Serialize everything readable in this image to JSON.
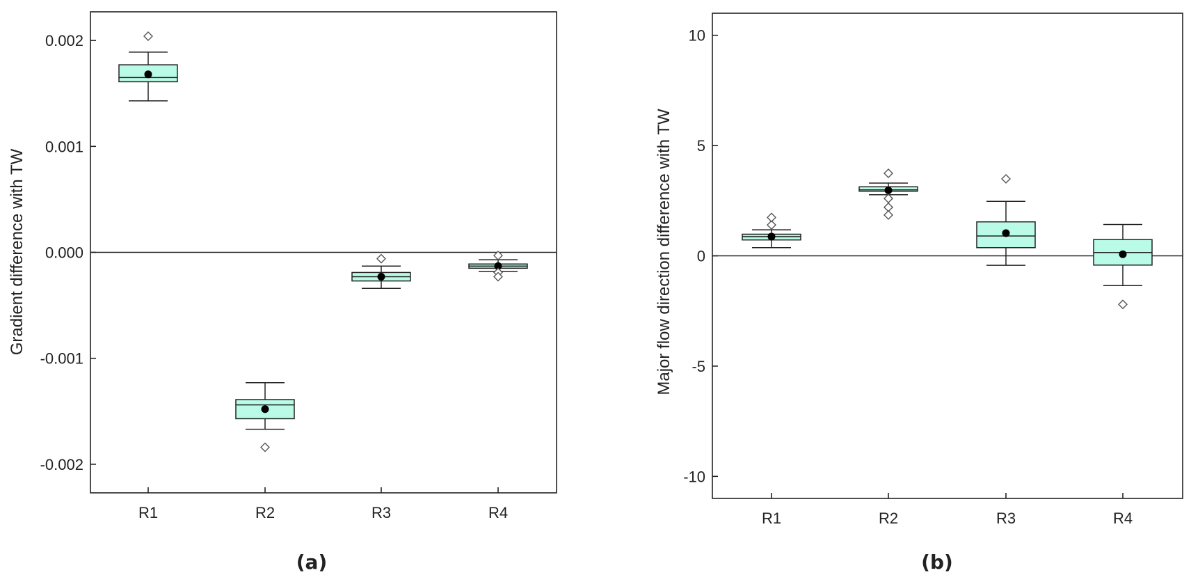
{
  "colors": {
    "box_fill": "#b9fbe6",
    "axis": "#222222",
    "mean_dot": "#000000",
    "outlier_stroke": "#555555"
  },
  "chart_data": [
    {
      "type": "box",
      "panel_label": "(a)",
      "title": "",
      "xlabel": "",
      "ylabel": "Gradient  difference with TW",
      "ylim": [
        -0.00227,
        0.00227
      ],
      "yticks": [
        -0.002,
        -0.001,
        0.0,
        0.001,
        0.002
      ],
      "ytick_labels": [
        "-0.002",
        "-0.001",
        "0.000",
        "0.001",
        "0.002"
      ],
      "reference_line": 0,
      "grid": false,
      "categories": [
        "R1",
        "R2",
        "R3",
        "R4"
      ],
      "boxes": [
        {
          "category": "R1",
          "whisker_low": 0.00143,
          "q1": 0.00161,
          "median": 0.00165,
          "q3": 0.00177,
          "whisker_high": 0.00189,
          "mean": 0.00168,
          "outliers": [
            0.00204
          ]
        },
        {
          "category": "R2",
          "whisker_low": -0.00167,
          "q1": -0.00157,
          "median": -0.00144,
          "q3": -0.00139,
          "whisker_high": -0.00123,
          "mean": -0.00148,
          "outliers": [
            -0.00184
          ]
        },
        {
          "category": "R3",
          "whisker_low": -0.00034,
          "q1": -0.00027,
          "median": -0.00023,
          "q3": -0.00019,
          "whisker_high": -0.00013,
          "mean": -0.00023,
          "outliers": [
            -6e-05
          ]
        },
        {
          "category": "R4",
          "whisker_low": -0.00018,
          "q1": -0.00015,
          "median": -0.00013,
          "q3": -0.00011,
          "whisker_high": -7e-05,
          "mean": -0.00013,
          "outliers": [
            -3e-05,
            -0.00019,
            -0.00023
          ]
        }
      ]
    },
    {
      "type": "box",
      "panel_label": "(b)",
      "title": "",
      "xlabel": "",
      "ylabel": "Major flow  direction difference with TW",
      "ylim": [
        -11,
        11
      ],
      "yticks": [
        -10,
        -5,
        0,
        5,
        10
      ],
      "ytick_labels": [
        "-10",
        "-5",
        "0",
        "5",
        "10"
      ],
      "reference_line": 0,
      "grid": false,
      "categories": [
        "R1",
        "R2",
        "R3",
        "R4"
      ],
      "boxes": [
        {
          "category": "R1",
          "whisker_low": 0.37,
          "q1": 0.72,
          "median": 0.87,
          "q3": 0.98,
          "whisker_high": 1.18,
          "mean": 0.87,
          "outliers": [
            1.4,
            1.74
          ]
        },
        {
          "category": "R2",
          "whisker_low": 2.77,
          "q1": 2.93,
          "median": 2.99,
          "q3": 3.13,
          "whisker_high": 3.3,
          "mean": 2.97,
          "outliers": [
            3.74,
            2.6,
            2.2,
            1.85
          ]
        },
        {
          "category": "R3",
          "whisker_low": -0.43,
          "q1": 0.37,
          "median": 0.9,
          "q3": 1.54,
          "whisker_high": 2.47,
          "mean": 1.03,
          "outliers": [
            3.49
          ]
        },
        {
          "category": "R4",
          "whisker_low": -1.35,
          "q1": -0.42,
          "median": 0.15,
          "q3": 0.74,
          "whisker_high": 1.42,
          "mean": 0.07,
          "outliers": [
            -2.2
          ]
        }
      ]
    }
  ]
}
